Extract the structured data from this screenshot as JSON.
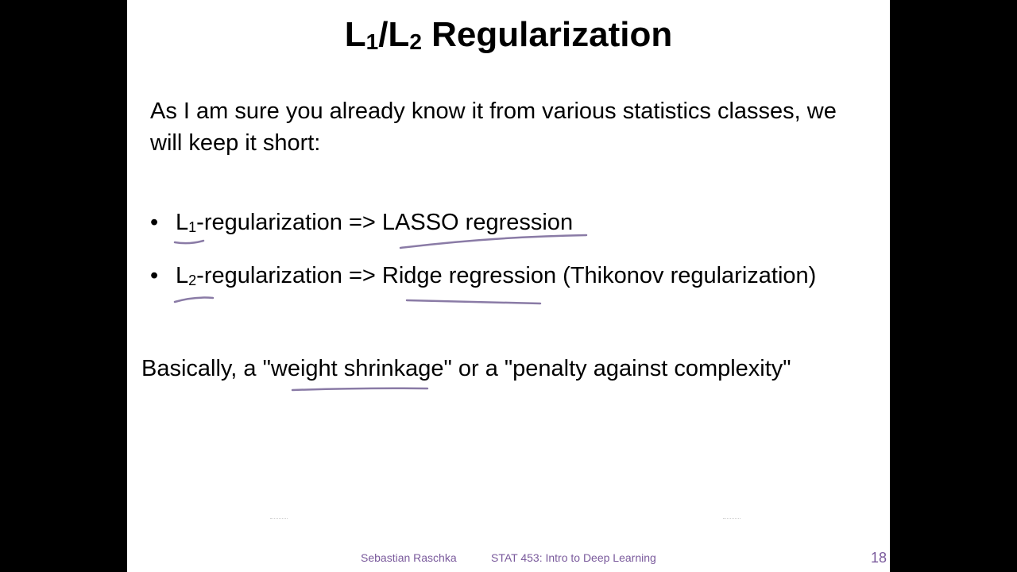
{
  "slide": {
    "title_l1": "L",
    "title_sub1": "1",
    "title_sep": "/L",
    "title_sub2": "2",
    "title_rest": " Regularization",
    "intro": "As I am sure you already know it from various statistics classes, we will keep it short:",
    "bullets": [
      {
        "bullet": "•",
        "prefix": "L",
        "sub": "1",
        "rest": "-regularization => LASSO regression"
      },
      {
        "bullet": "•",
        "prefix": "L",
        "sub": "2",
        "rest": "-regularization => Ridge regression (Thikonov regularization)"
      }
    ],
    "summary": "Basically, a \"weight shrinkage\" or  a \"penalty against complexity\""
  },
  "footer": {
    "author": "Sebastian Raschka",
    "course": "STAT 453: Intro to Deep Learning",
    "page": "18"
  },
  "colors": {
    "annotation_ink": "#8a7ba6",
    "footer_text": "#7a5a9c",
    "letterbox": "#000000"
  }
}
